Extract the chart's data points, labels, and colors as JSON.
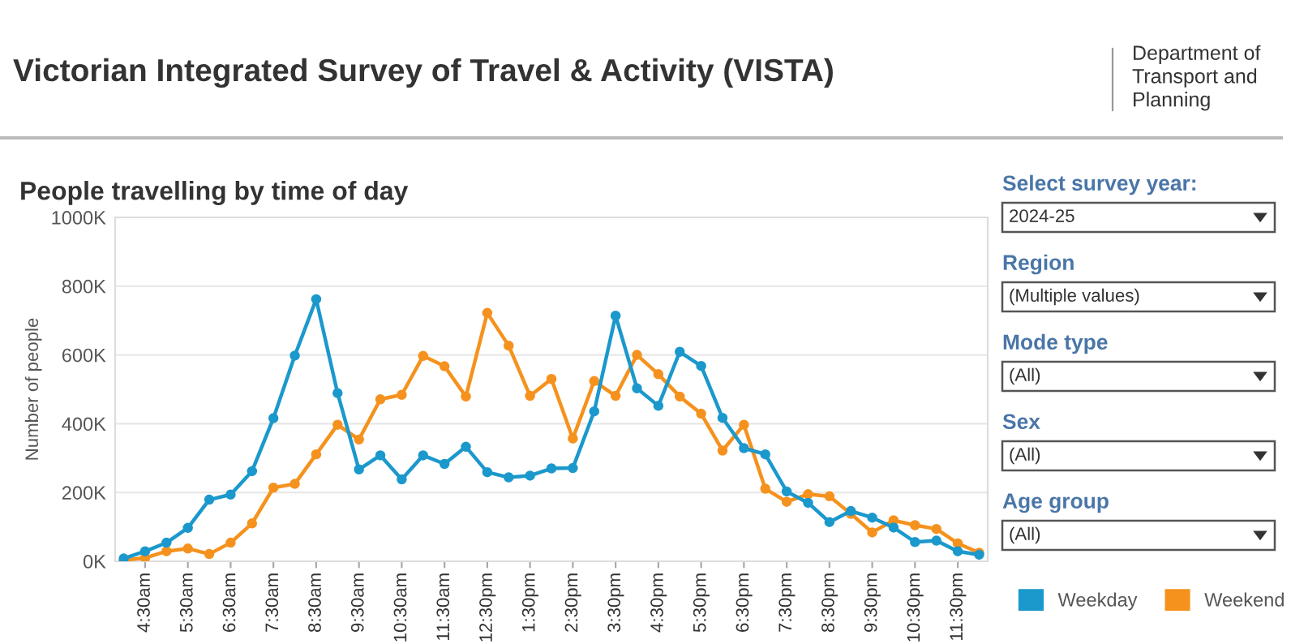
{
  "chart_data": [
    {
      "type": "line",
      "title": "Victorian Integrated Survey of Travel & Activity (VISTA)",
      "subtitle": "People travelling by time of day",
      "ylabel": "Number of people",
      "annotations": [
        "Department of Transport and Planning"
      ],
      "categories": [
        null,
        "4:30am",
        null,
        "5:30am",
        null,
        "6:30am",
        null,
        "7:30am",
        null,
        "8:30am",
        null,
        "9:30am",
        null,
        "10:30am",
        null,
        "11:30am",
        null,
        "12:30pm",
        null,
        "1:30pm",
        null,
        "2:30pm",
        null,
        "3:30pm",
        null,
        "4:30pm",
        null,
        "5:30pm",
        null,
        "6:30pm",
        null,
        "7:30pm",
        null,
        "8:30pm",
        null,
        "9:30pm",
        null,
        "10:30pm",
        null,
        "11:30pm",
        null
      ],
      "series": [
        {
          "name": "Weekday",
          "color": "#1b98cc",
          "values": [
            8,
            29,
            54,
            97,
            179,
            194,
            262,
            416,
            598,
            762,
            489,
            267,
            308,
            238,
            308,
            283,
            333,
            259,
            244,
            249,
            270,
            271,
            436,
            714,
            503,
            452,
            609,
            568,
            417,
            329,
            311,
            203,
            170,
            114,
            146,
            127,
            98,
            56,
            60,
            29,
            19
          ]
        },
        {
          "name": "Weekend",
          "color": "#f5921e",
          "values": [
            3,
            10,
            29,
            37,
            21,
            54,
            110,
            214,
            225,
            311,
            397,
            354,
            471,
            484,
            597,
            567,
            479,
            722,
            627,
            481,
            530,
            357,
            524,
            481,
            600,
            544,
            479,
            429,
            322,
            397,
            211,
            173,
            195,
            189,
            138,
            84,
            119,
            105,
            94,
            52,
            25
          ]
        }
      ],
      "ylim": [
        0,
        1000
      ],
      "yticks": [
        {
          "value": 0,
          "label": "0K"
        },
        {
          "value": 200,
          "label": "200K"
        },
        {
          "value": 400,
          "label": "400K"
        },
        {
          "value": 600,
          "label": "600K"
        },
        {
          "value": 800,
          "label": "800K"
        },
        {
          "value": 1000,
          "label": "1000K"
        }
      ],
      "grid": "y",
      "marker": "circle",
      "line_style": "solid",
      "legend": "bottom right"
    },
    {
      "type": "other",
      "annotations": [
        "Select survey year:",
        "2024-25",
        "Region",
        "(Multiple values)",
        "Mode type",
        "(All)",
        "Sex",
        "(All)",
        "Age group",
        "(All)"
      ]
    }
  ]
}
